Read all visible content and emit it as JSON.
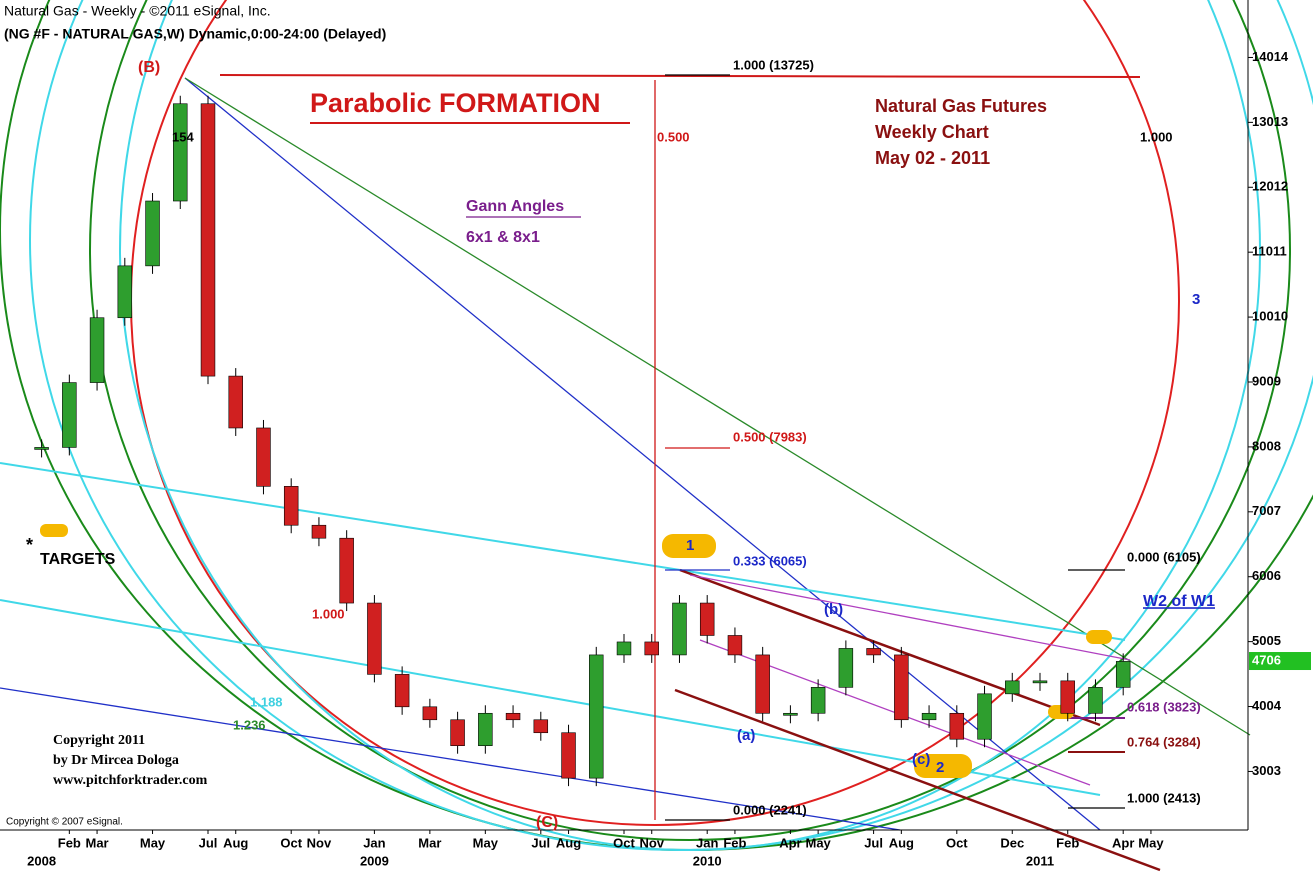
{
  "chart_data": {
    "type": "candlestick",
    "header": [
      "Natural Gas - Weekly - ©2011 eSignal, Inc.",
      "(NG #F - NATURAL GAS,W) Dynamic,0:00-24:00 (Delayed)"
    ],
    "title": "Parabolic FORMATION",
    "subtitle": [
      "Natural Gas Futures",
      "Weekly Chart",
      "May 02 - 2011"
    ],
    "x": [
      "2008-01",
      "2008-02",
      "2008-03",
      "2008-04",
      "2008-05",
      "2008-06",
      "2008-07",
      "2008-08",
      "2008-09",
      "2008-10",
      "2008-11",
      "2008-12",
      "2009-01",
      "2009-02",
      "2009-03",
      "2009-04",
      "2009-05",
      "2009-06",
      "2009-07",
      "2009-08",
      "2009-09",
      "2009-10",
      "2009-11",
      "2009-12",
      "2010-01",
      "2010-02",
      "2010-03",
      "2010-04",
      "2010-05",
      "2010-06",
      "2010-07",
      "2010-08",
      "2010-09",
      "2010-10",
      "2010-11",
      "2010-12",
      "2011-01",
      "2011-02",
      "2011-03",
      "2011-04"
    ],
    "close": [
      8000,
      9000,
      10000,
      10800,
      11800,
      13300,
      9100,
      8300,
      7400,
      6800,
      6600,
      5600,
      4500,
      4000,
      3800,
      3400,
      3900,
      3800,
      3600,
      2900,
      4800,
      5000,
      4800,
      5600,
      5100,
      4800,
      3900,
      3900,
      4300,
      4900,
      4800,
      3800,
      3900,
      3500,
      4200,
      4400,
      4400,
      3900,
      4300,
      4700
    ],
    "up_color": "#2e9e2e",
    "down_color": "#d02020",
    "last_price": 4706,
    "xlim": [
      "2007-12",
      "2011-09"
    ],
    "xticks": [
      {
        "value": "2008-02",
        "label": "Feb"
      },
      {
        "value": "2008-03",
        "label": "Mar"
      },
      {
        "value": "2008-05",
        "label": "May"
      },
      {
        "value": "2008-07",
        "label": "Jul"
      },
      {
        "value": "2008-08",
        "label": "Aug"
      },
      {
        "value": "2008-10",
        "label": "Oct"
      },
      {
        "value": "2008-11",
        "label": "Nov"
      },
      {
        "value": "2009-01",
        "label": "Jan"
      },
      {
        "value": "2009-03",
        "label": "Mar"
      },
      {
        "value": "2009-05",
        "label": "May"
      },
      {
        "value": "2009-07",
        "label": "Jul"
      },
      {
        "value": "2009-08",
        "label": "Aug"
      },
      {
        "value": "2009-10",
        "label": "Oct"
      },
      {
        "value": "2009-11",
        "label": "Nov"
      },
      {
        "value": "2010-01",
        "label": "Jan"
      },
      {
        "value": "2010-02",
        "label": "Feb"
      },
      {
        "value": "2010-04",
        "label": "Apr"
      },
      {
        "value": "2010-05",
        "label": "May"
      },
      {
        "value": "2010-07",
        "label": "Jul"
      },
      {
        "value": "2010-08",
        "label": "Aug"
      },
      {
        "value": "2010-10",
        "label": "Oct"
      },
      {
        "value": "2010-12",
        "label": "Dec"
      },
      {
        "value": "2011-02",
        "label": "Feb"
      },
      {
        "value": "2011-04",
        "label": "Apr"
      },
      {
        "value": "2011-05",
        "label": "May"
      }
    ],
    "year_ticks": [
      {
        "value": "2008-01",
        "label": "2008"
      },
      {
        "value": "2009-01",
        "label": "2009"
      },
      {
        "value": "2010-01",
        "label": "2010"
      },
      {
        "value": "2011-01",
        "label": "2011"
      }
    ],
    "ylim": [
      2100,
      14900
    ],
    "yticks": [
      3003,
      4004,
      5005,
      6006,
      7007,
      8008,
      9009,
      10010,
      11011,
      12012,
      13013,
      14014
    ],
    "annotations": {
      "b": "(B)",
      "c": "(C)",
      "n154": "154",
      "fib_top": "1.000 (13725)",
      "half": "0.500",
      "one_right": "1.000",
      "fib_half": "0.500 (7983)",
      "fib_third": "0.333 (6065)",
      "fib_zero": "0.000 (2241)",
      "one_red": "1.000",
      "r1188": "1.188",
      "r1236": "1.236",
      "three": "3",
      "fib_zero2": "0.000 (6105)",
      "w2": "W2 of W1",
      "wb": "(b)",
      "wa": "(a)",
      "wc": "(c)",
      "two": "2",
      "one": "1",
      "f618": "0.618 (3823)",
      "f764": "0.764 (3284)",
      "f1000": "1.000 (2413)",
      "star": "*",
      "targets": "TARGETS",
      "gann": "Gann Angles",
      "gann_sub": "6x1 &  8x1",
      "copy1": "Copyright 2011",
      "copy2": "by Dr Mircea Dologa",
      "copy3": "www.pitchforktrader.com",
      "esignal": "Copyright © 2007 eSignal."
    }
  }
}
